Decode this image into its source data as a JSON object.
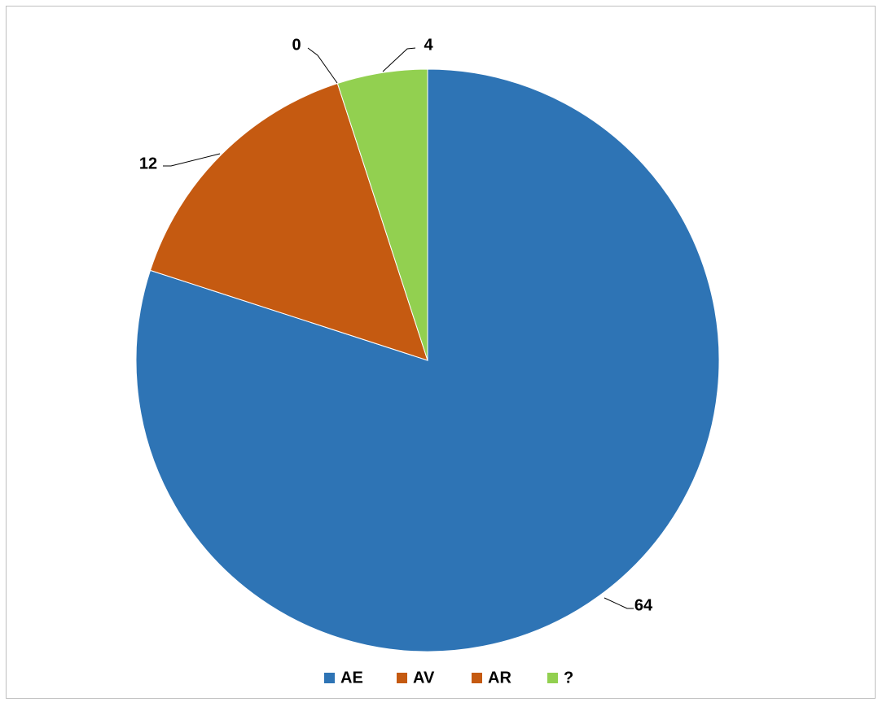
{
  "chart_data": {
    "type": "pie",
    "title": "",
    "categories": [
      "AE",
      "AV",
      "AR",
      "?"
    ],
    "values": [
      64,
      12,
      0,
      4
    ],
    "colors": [
      "#2e74b5",
      "#c55a11",
      "#c55a11",
      "#92d050"
    ],
    "start_angle_deg": 0,
    "direction": "clockwise",
    "legend_position": "bottom",
    "data_labels": [
      "64",
      "12",
      "0",
      "4"
    ]
  }
}
